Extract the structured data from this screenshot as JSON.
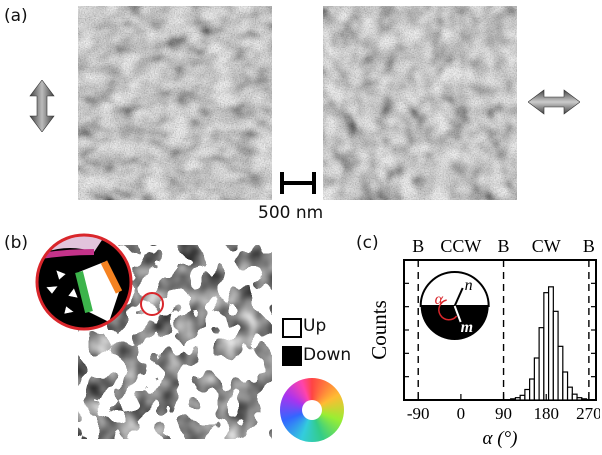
{
  "figure": {
    "panel_a": {
      "label": "(a)",
      "scalebar_label": "500 nm"
    },
    "panel_b": {
      "label": "(b)",
      "legend": {
        "up": "Up",
        "down": "Down"
      }
    },
    "panel_c": {
      "label": "(c)",
      "top_labels": [
        "B",
        "CCW",
        "B",
        "CW",
        "B"
      ],
      "inset": {
        "alpha": "α",
        "n": "n",
        "m": "m"
      }
    }
  },
  "colors": {
    "accent_red": "#d9262b",
    "domain_black": "#000000",
    "domain_white": "#ffffff"
  },
  "chart_data": {
    "type": "bar",
    "xlabel": "α (°)",
    "ylabel": "Counts",
    "xlim": [
      -120,
      285
    ],
    "x_ticks": [
      "-90",
      "0",
      "90",
      "180",
      "270"
    ],
    "dashed_lines_at": [
      -90,
      90,
      270
    ],
    "bins": [
      110,
      120,
      130,
      140,
      150,
      160,
      170,
      180,
      190,
      200,
      210,
      220,
      230,
      240,
      250,
      260
    ],
    "bin_width": 10,
    "values": [
      1,
      2,
      4,
      9,
      18,
      36,
      62,
      92,
      97,
      76,
      46,
      24,
      11,
      5,
      2,
      1
    ],
    "grid": false,
    "ylim": [
      0,
      120
    ]
  }
}
